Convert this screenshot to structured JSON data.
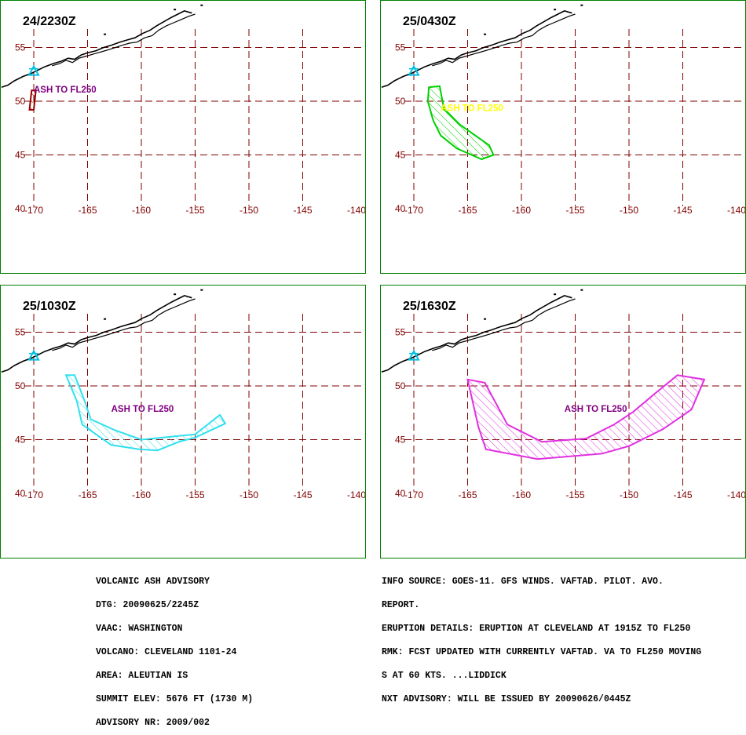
{
  "colors": {
    "grid": "#800000",
    "border": "#008000",
    "coast": "#000000",
    "volcano": "#00c0e0"
  },
  "lat_labels": [
    "55",
    "50",
    "45",
    "40"
  ],
  "lon_labels": [
    "-170",
    "-165",
    "-160",
    "-155",
    "-150",
    "-145",
    "-140"
  ],
  "panels": [
    {
      "id": "p1",
      "time": "24/2230Z",
      "label": "ASH TO FL250",
      "color": "#990000",
      "label_color": "#800080",
      "polygon": [
        [
          -170.2,
          51.0
        ],
        [
          -169.8,
          51.0
        ],
        [
          -170.0,
          49.2
        ],
        [
          -170.4,
          49.2
        ]
      ],
      "label_pos": [
        -170.0,
        50.8
      ]
    },
    {
      "id": "p2",
      "time": "25/0430Z",
      "label": "ASH TO FL250",
      "color": "#00d000",
      "label_color": "#ffff00",
      "polygon": [
        [
          -168.6,
          51.3
        ],
        [
          -167.6,
          51.4
        ],
        [
          -167.2,
          49.3
        ],
        [
          -165.7,
          47.8
        ],
        [
          -163.0,
          45.9
        ],
        [
          -162.6,
          45.0
        ],
        [
          -163.7,
          44.6
        ],
        [
          -166.0,
          45.6
        ],
        [
          -167.5,
          46.8
        ],
        [
          -168.2,
          48.2
        ],
        [
          -168.7,
          50.0
        ]
      ],
      "label_pos": [
        -167.5,
        49.1
      ]
    },
    {
      "id": "p3",
      "time": "25/1030Z",
      "label": "ASH TO FL250",
      "color": "#30e0f0",
      "label_color": "#800080",
      "polygon": [
        [
          -167.0,
          51.0
        ],
        [
          -166.2,
          51.0
        ],
        [
          -165.2,
          48.4
        ],
        [
          -164.7,
          46.9
        ],
        [
          -162.5,
          45.9
        ],
        [
          -160.0,
          45.0
        ],
        [
          -157.0,
          45.3
        ],
        [
          -155.0,
          45.5
        ],
        [
          -152.7,
          47.3
        ],
        [
          -152.2,
          46.5
        ],
        [
          -155.0,
          45.2
        ],
        [
          -156.5,
          44.8
        ],
        [
          -158.5,
          44.0
        ],
        [
          -160.2,
          44.1
        ],
        [
          -162.8,
          44.5
        ],
        [
          -165.5,
          46.4
        ],
        [
          -166.0,
          48.6
        ]
      ],
      "label_pos": [
        -162.8,
        47.6
      ]
    },
    {
      "id": "p4",
      "time": "25/1630Z",
      "label": "ASH TO FL250",
      "color": "#e030e0",
      "label_color": "#800080",
      "polygon": [
        [
          -165.0,
          50.6
        ],
        [
          -163.4,
          50.3
        ],
        [
          -161.3,
          46.4
        ],
        [
          -158.1,
          44.8
        ],
        [
          -154.0,
          45.1
        ],
        [
          -151.4,
          46.4
        ],
        [
          -149.6,
          47.6
        ],
        [
          -147.7,
          49.2
        ],
        [
          -145.5,
          51.0
        ],
        [
          -143.0,
          50.6
        ],
        [
          -144.2,
          47.8
        ],
        [
          -146.8,
          46.0
        ],
        [
          -150.0,
          44.4
        ],
        [
          -152.5,
          43.7
        ],
        [
          -158.5,
          43.2
        ],
        [
          -163.3,
          44.1
        ],
        [
          -164.0,
          46.2
        ]
      ],
      "label_pos": [
        -156.0,
        47.6
      ]
    }
  ],
  "advisory_left": [
    "VOLCANIC ASH ADVISORY",
    "DTG: 20090625/2245Z",
    "VAAC: WASHINGTON",
    "VOLCANO: CLEVELAND 1101-24",
    "AREA: ALEUTIAN IS",
    "SUMMIT ELEV: 5676 FT (1730 M)",
    "ADVISORY NR: 2009/002"
  ],
  "advisory_right": [
    "INFO SOURCE: GOES-11. GFS WINDS. VAFTAD. PILOT. AVO.",
    "REPORT.",
    "ERUPTION DETAILS: ERUPTION AT CLEVELAND AT 1915Z TO FL250",
    "RMK: FCST UPDATED WITH CURRENTLY VAFTAD. VA TO FL250 MOVING",
    "S AT 60 KTS. ...LIDDICK",
    "NXT ADVISORY: WILL BE ISSUED BY 20090626/0445Z"
  ]
}
